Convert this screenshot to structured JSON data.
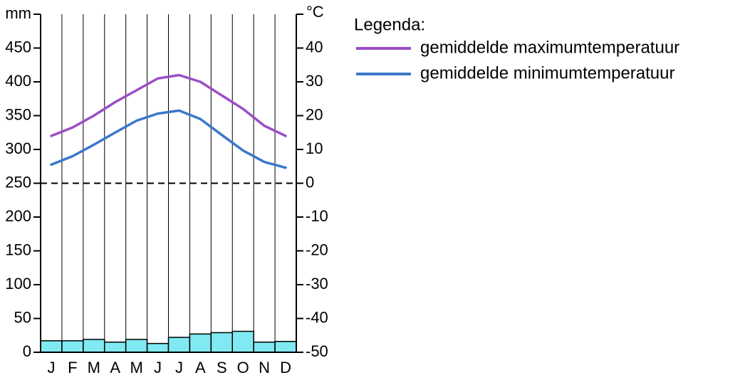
{
  "chart_data": {
    "type": "climate",
    "legend_title": "Legenda:",
    "y_label": "mm",
    "y2_label": "°C",
    "categories": [
      "J",
      "F",
      "M",
      "A",
      "M",
      "J",
      "J",
      "A",
      "S",
      "O",
      "N",
      "D"
    ],
    "precipitation": {
      "color": "#80e9f2",
      "values": [
        17,
        17,
        19,
        15,
        19,
        13,
        22,
        27,
        29,
        31,
        15,
        16
      ]
    },
    "series": [
      {
        "name": "gemiddelde maximumtemperatuur",
        "color": "#9b4fc6",
        "axis": "y2",
        "values": [
          14,
          16.5,
          20,
          24,
          27.5,
          31,
          32,
          30,
          26,
          22,
          17,
          14
        ]
      },
      {
        "name": "gemiddelde minimumtemperatuur",
        "color": "#3b78c9",
        "axis": "y2",
        "values": [
          5.5,
          8,
          11.4,
          15,
          18.5,
          20.6,
          21.5,
          19,
          14.3,
          9.7,
          6.3,
          4.6
        ]
      }
    ],
    "ylim": [
      0,
      500
    ],
    "yticks": [
      0,
      50,
      100,
      150,
      200,
      250,
      300,
      350,
      400,
      450
    ],
    "y2lim": [
      -50,
      50
    ],
    "y2ticks": [
      -50,
      -40,
      -30,
      -20,
      -10,
      0,
      10,
      20,
      30,
      40
    ],
    "zero_line": "dashed",
    "grid": true
  }
}
